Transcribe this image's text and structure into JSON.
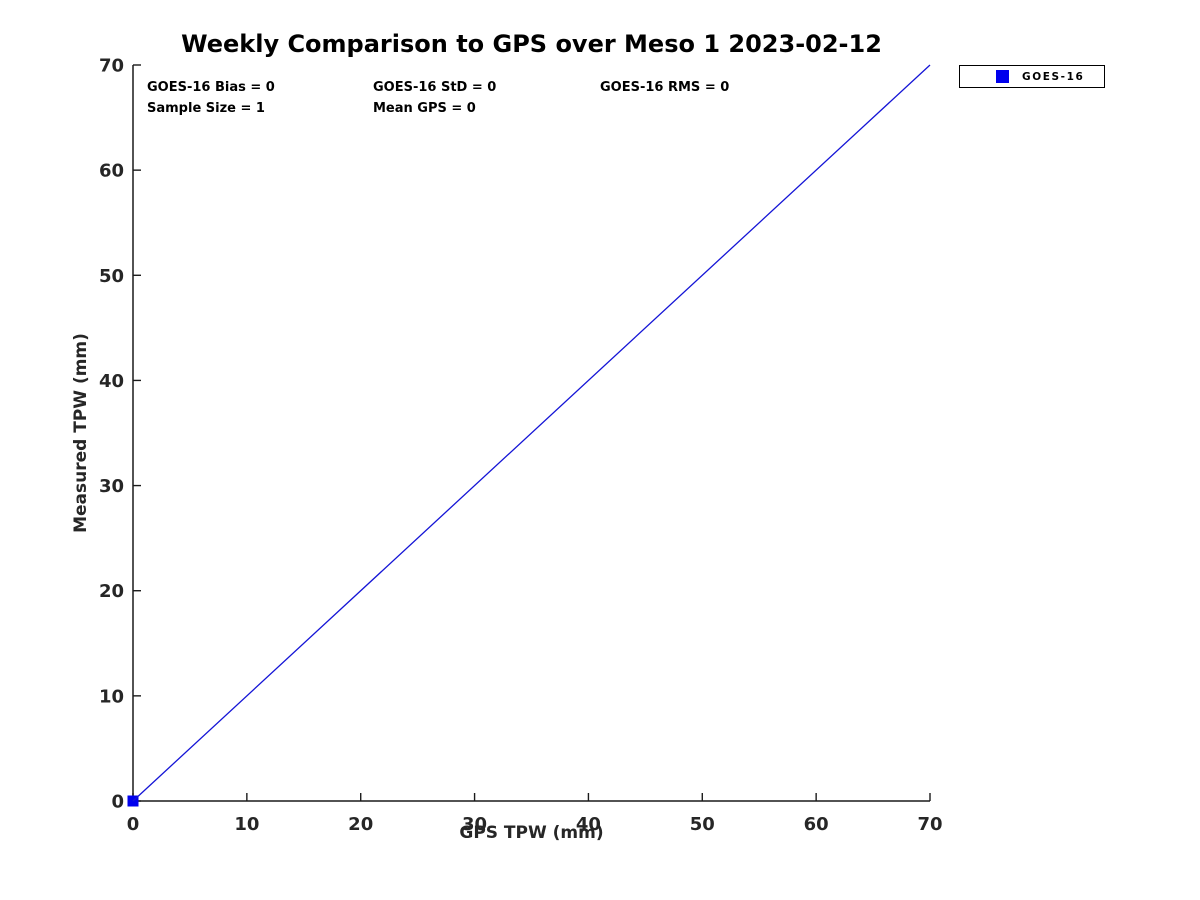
{
  "figure": {
    "background": "#ffffff"
  },
  "chart_data": {
    "type": "scatter",
    "title": "Weekly Comparison to GPS over Meso 1 2023-02-12",
    "xlabel": "GPS TPW (mm)",
    "ylabel": "Measured TPW (mm)",
    "xlim": [
      0,
      70
    ],
    "ylim": [
      0,
      70
    ],
    "xticks": [
      0,
      10,
      20,
      30,
      40,
      50,
      60,
      70
    ],
    "yticks": [
      0,
      10,
      20,
      30,
      40,
      50,
      60,
      70
    ],
    "grid": false,
    "legend_position": "outside-upper-right",
    "series": [
      {
        "name": "GOES-16",
        "type": "scatter",
        "marker": "square",
        "color": "#0000ee",
        "points": [
          [
            0,
            0
          ]
        ]
      },
      {
        "name": "reference-line",
        "type": "line",
        "color": "#1414d6",
        "x": [
          0,
          70
        ],
        "y": [
          0,
          70
        ]
      }
    ],
    "annotations": [
      {
        "text": "GOES-16 Bias = 0"
      },
      {
        "text": "GOES-16 StD = 0"
      },
      {
        "text": "GOES-16 RMS = 0"
      },
      {
        "text": "Sample Size = 1"
      },
      {
        "text": "Mean GPS = 0"
      }
    ],
    "stats": {
      "goes16_bias": 0,
      "goes16_std": 0,
      "goes16_rms": 0,
      "sample_size": 1,
      "mean_gps": 0
    }
  },
  "legend": {
    "items": [
      {
        "label": "GOES-16",
        "marker": "square",
        "color": "#0000ee"
      }
    ]
  }
}
